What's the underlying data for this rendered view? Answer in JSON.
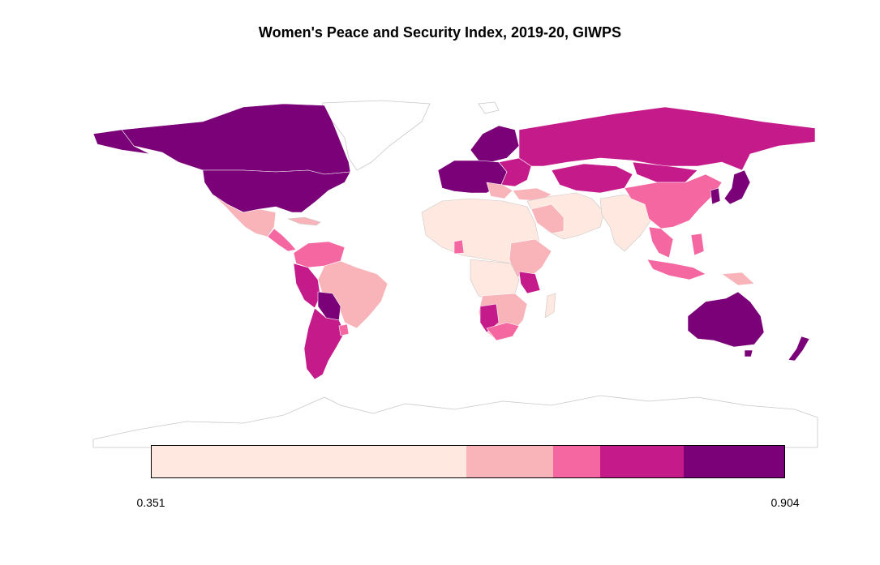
{
  "map": {
    "title": "Women's Peace and Security Index, 2019-20, GIWPS",
    "legend": {
      "min_label": "0.351",
      "max_label": "0.904",
      "bins": [
        {
          "from": 0.351,
          "to": 0.626,
          "color": "#fee8df"
        },
        {
          "from": 0.626,
          "to": 0.702,
          "color": "#f8b4b9"
        },
        {
          "from": 0.702,
          "to": 0.743,
          "color": "#f567a1"
        },
        {
          "from": 0.743,
          "to": 0.816,
          "color": "#c51b8a"
        },
        {
          "from": 0.816,
          "to": 0.904,
          "color": "#7a0177"
        }
      ]
    },
    "colors": {
      "outline": "#c8c8c8",
      "no_data_fill": "#ffffff"
    }
  }
}
